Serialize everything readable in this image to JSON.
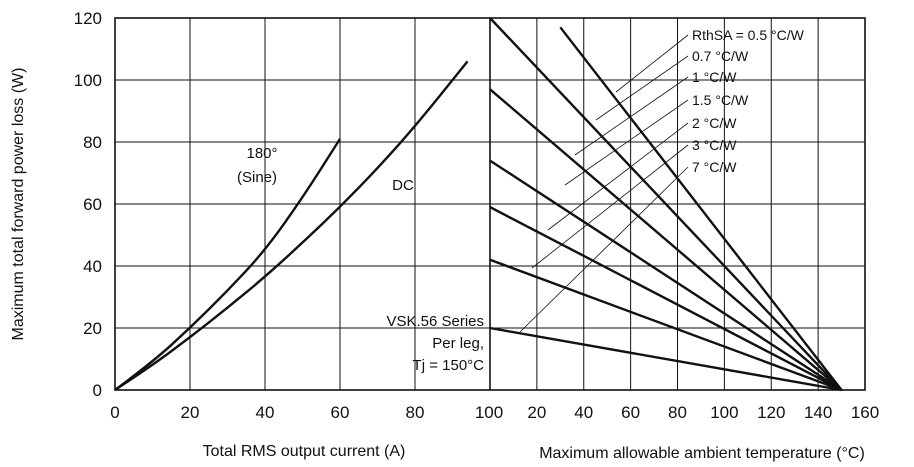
{
  "chart_data": {
    "type": "line",
    "ylabel": "Maximum total forward power loss (W)",
    "ylim": [
      0,
      120
    ],
    "yticks": [
      0,
      20,
      40,
      60,
      80,
      100,
      120
    ],
    "grid": true,
    "left_panel": {
      "xlabel": "Total RMS output current (A)",
      "xlim": [
        0,
        100
      ],
      "xticks": [
        0,
        20,
        40,
        60,
        80,
        100
      ],
      "series": [
        {
          "name": "180° (Sine)",
          "label_lines": [
            "180°",
            "(Sine)"
          ],
          "x": [
            0,
            10,
            20,
            30,
            40,
            50,
            60
          ],
          "y": [
            0,
            9,
            20,
            32,
            45,
            62,
            81
          ]
        },
        {
          "name": "DC",
          "label_lines": [
            "DC"
          ],
          "x": [
            0,
            10,
            20,
            30,
            40,
            50,
            60,
            70,
            80,
            94
          ],
          "y": [
            0,
            8,
            17,
            26.5,
            36.5,
            47.5,
            59,
            71.5,
            85,
            106
          ]
        }
      ],
      "annotation_lines": [
        "VSK.56 Series",
        "Per leg,",
        "Tj = 150°C"
      ]
    },
    "right_panel": {
      "xlabel": "Maximum allowable ambient temperature (°C)",
      "xlim": [
        0,
        160
      ],
      "xticks": [
        20,
        40,
        60,
        80,
        100,
        120,
        140,
        160
      ],
      "convergence": {
        "x": 150,
        "y": 0
      },
      "series": [
        {
          "name": "RthSA = 0.5 °C/W",
          "x": [
            30,
            150
          ],
          "y": [
            117,
            0
          ]
        },
        {
          "name": "0.7 °C/W",
          "x": [
            0,
            150
          ],
          "y": [
            120,
            0
          ]
        },
        {
          "name": "1 °C/W",
          "x": [
            0,
            150
          ],
          "y": [
            97,
            0
          ]
        },
        {
          "name": "1.5 °C/W",
          "x": [
            0,
            150
          ],
          "y": [
            74,
            0
          ]
        },
        {
          "name": "2 °C/W",
          "x": [
            0,
            150
          ],
          "y": [
            59,
            0
          ]
        },
        {
          "name": "3 °C/W",
          "x": [
            0,
            150
          ],
          "y": [
            42,
            0
          ]
        },
        {
          "name": "7 °C/W",
          "x": [
            0,
            150
          ],
          "y": [
            20,
            0
          ]
        }
      ]
    }
  }
}
